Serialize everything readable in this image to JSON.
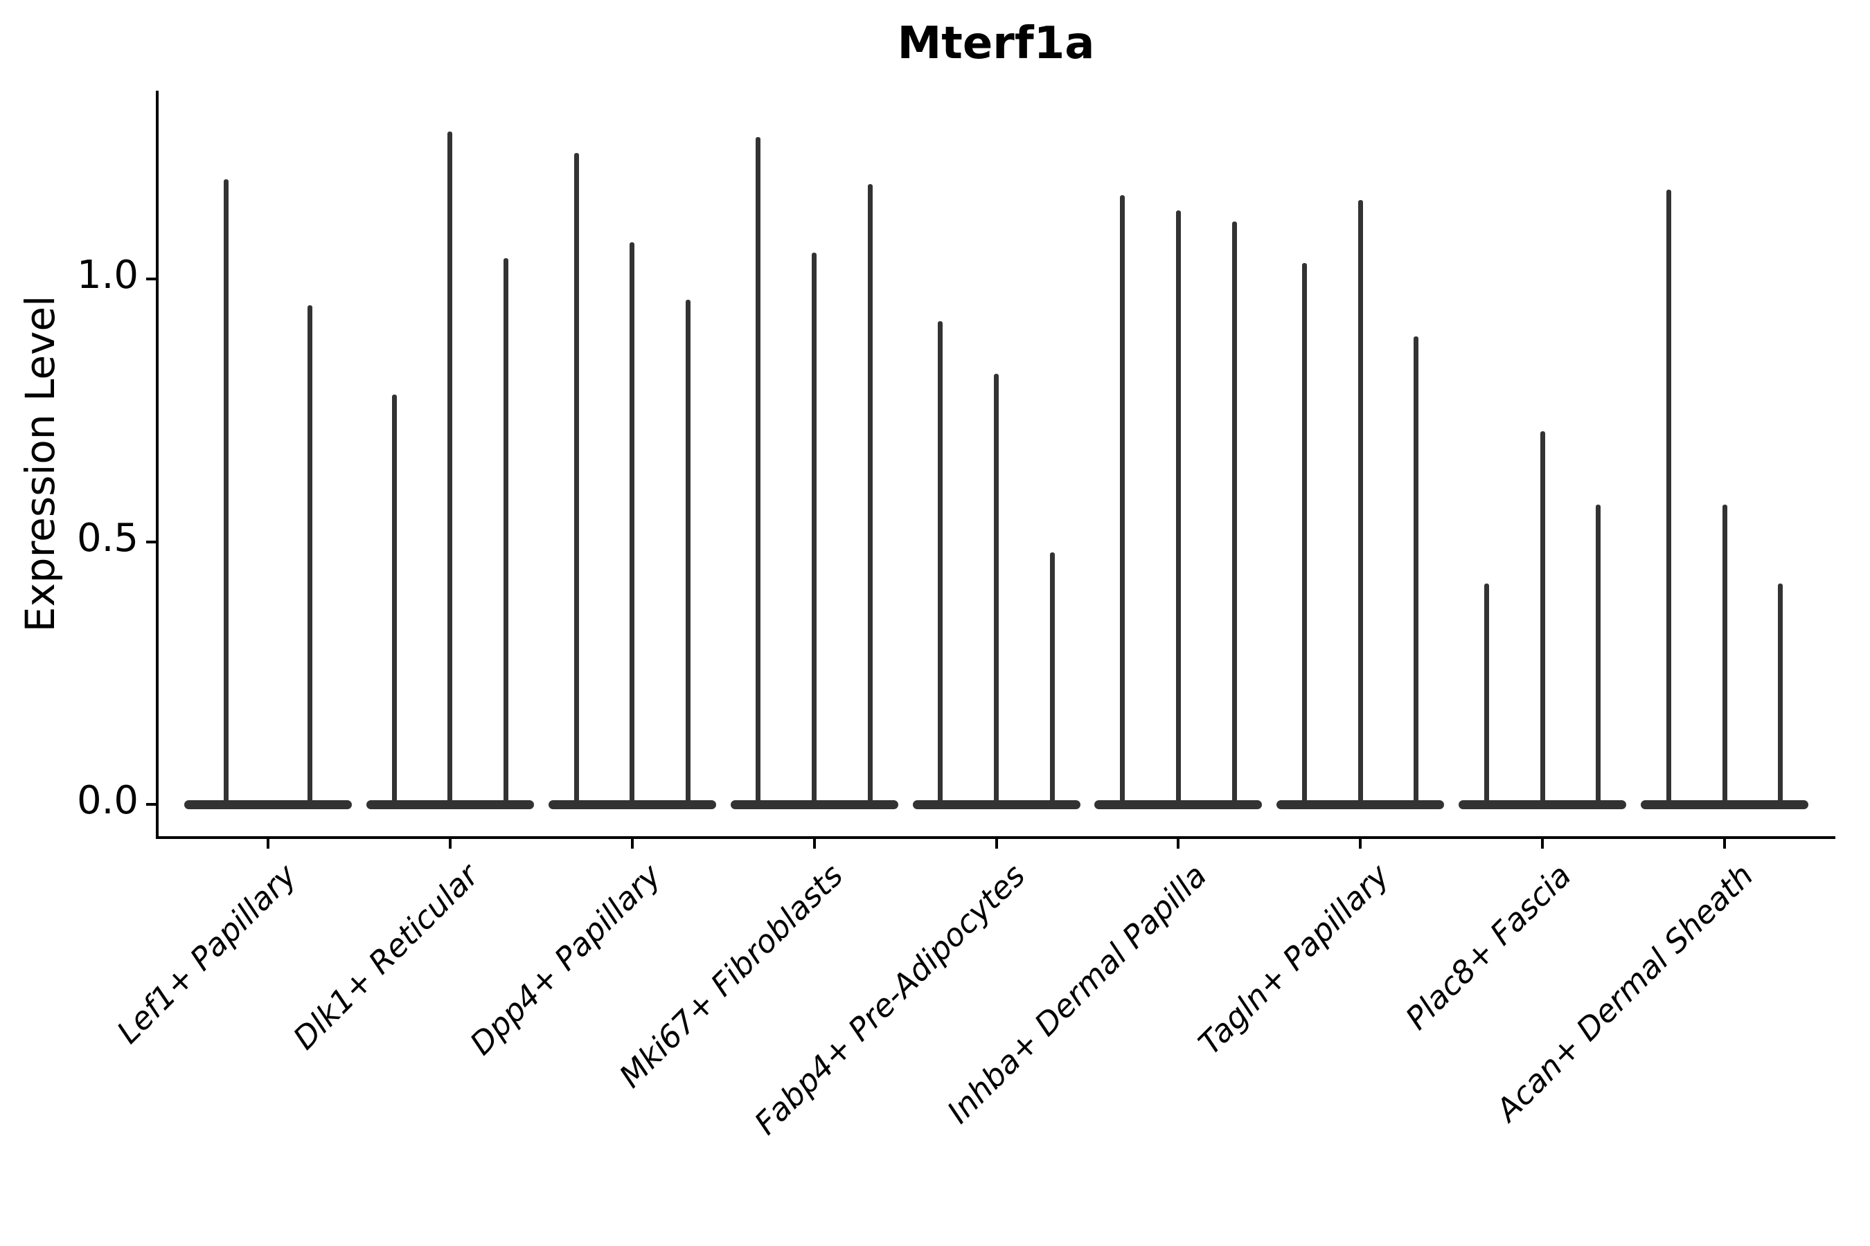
{
  "chart_data": {
    "type": "violin",
    "title": "Mterf1a",
    "ylabel": "Expression Level",
    "xlabel": "",
    "yticks": [
      "0.0",
      "0.5",
      "1.0"
    ],
    "ytick_values": [
      0.0,
      0.5,
      1.0
    ],
    "ylim": [
      0.0,
      1.36
    ],
    "grid": false,
    "legend": false,
    "violin_style": "thin-spike with flat baseline bulge at 0",
    "categories": [
      {
        "label": "Lef1+ Papillary",
        "violins": [
          1.19,
          0.95
        ]
      },
      {
        "label": "Dlk1+ Reticular",
        "violins": [
          0.78,
          1.28,
          1.04
        ]
      },
      {
        "label": "Dpp4+ Papillary",
        "violins": [
          1.24,
          1.07,
          0.96
        ]
      },
      {
        "label": "Mki67+ Fibroblasts",
        "violins": [
          1.27,
          1.05,
          1.18
        ]
      },
      {
        "label": "Fabp4+ Pre-Adipocytes",
        "violins": [
          0.92,
          0.82,
          0.48
        ]
      },
      {
        "label": "Inhba+ Dermal Papilla",
        "violins": [
          1.16,
          1.13,
          1.11
        ]
      },
      {
        "label": "Tagln+ Papillary",
        "violins": [
          1.03,
          1.15,
          0.89
        ]
      },
      {
        "label": "Plac8+ Fascia",
        "violins": [
          0.42,
          0.71,
          0.57
        ]
      },
      {
        "label": "Acan+ Dermal Sheath",
        "violins": [
          1.17,
          0.57,
          0.42
        ]
      }
    ],
    "colors": {
      "violin": "#333333",
      "axis": "#000000",
      "text": "#000000",
      "background": "#ffffff"
    }
  }
}
